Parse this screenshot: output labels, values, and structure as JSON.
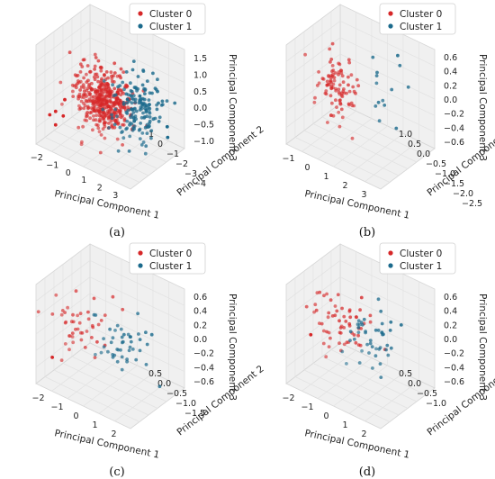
{
  "colors": {
    "cluster0": "#d62728",
    "cluster1": "#1b6a8c"
  },
  "chart_data": [
    {
      "id": "a",
      "caption": "(a)",
      "type": "scatter3d",
      "legend_location": "top",
      "xlabel": "Principal Component 1",
      "ylabel": "Principal Component 2",
      "zlabel": "Principal Component 3",
      "xticks": [
        "−2",
        "−1",
        "0",
        "1",
        "2",
        "3"
      ],
      "yticks": [
        "1",
        "0",
        "−1",
        "−2",
        "−3",
        "−4"
      ],
      "zticks": [
        "1.5",
        "1.0",
        "0.5",
        "0.0",
        "−0.5",
        "−1.0"
      ],
      "xlim": [
        -2.5,
        3.5
      ],
      "ylim": [
        -4.5,
        1.5
      ],
      "zlim": [
        -1.2,
        1.6
      ],
      "series": [
        {
          "name": "Cluster 0",
          "cluster": 0,
          "n": 420,
          "center": [
            0.6,
            -0.5,
            0.3
          ],
          "spread": [
            0.8,
            0.7,
            0.4
          ],
          "outliers": [
            [
              -2.2,
              0.5,
              -0.5
            ],
            [
              -2.0,
              0.2,
              -0.8
            ],
            [
              -1.6,
              0.9,
              -0.2
            ],
            [
              -1.3,
              0.4,
              0.1
            ],
            [
              -1.8,
              -0.3,
              -0.6
            ]
          ]
        },
        {
          "name": "Cluster 1",
          "cluster": 1,
          "n": 160,
          "center": [
            1.9,
            -2.0,
            0.0
          ],
          "spread": [
            0.7,
            0.8,
            0.45
          ],
          "outliers": [
            [
              3.0,
              -3.5,
              -0.8
            ],
            [
              2.8,
              -3.8,
              -0.6
            ]
          ]
        }
      ]
    },
    {
      "id": "b",
      "caption": "(b)",
      "type": "scatter3d",
      "legend_location": "top",
      "xlabel": "Principal Component 1",
      "ylabel": "Principal Component 2",
      "zlabel": "Principal Component 3",
      "xticks": [
        "−1",
        "0",
        "1",
        "2",
        "3"
      ],
      "yticks": [
        "1.0",
        "0.5",
        "0.0",
        "−0.5",
        "−1.0",
        "−1.5",
        "−2.0",
        "−2.5"
      ],
      "zticks": [
        "0.6",
        "0.4",
        "0.2",
        "0.0",
        "−0.2",
        "−0.4",
        "−0.6"
      ],
      "xlim": [
        -1.5,
        3.5
      ],
      "ylim": [
        -2.8,
        1.2
      ],
      "zlim": [
        -0.65,
        0.7
      ],
      "series": [
        {
          "name": "Cluster 0",
          "cluster": 0,
          "n": 95,
          "center": [
            0.4,
            0.2,
            0.2
          ],
          "spread": [
            0.5,
            0.4,
            0.2
          ],
          "outliers": []
        },
        {
          "name": "Cluster 1",
          "cluster": 1,
          "n": 14,
          "center": [
            1.8,
            -1.6,
            0.1
          ],
          "spread": [
            0.7,
            0.6,
            0.2
          ],
          "outliers": []
        }
      ]
    },
    {
      "id": "c",
      "caption": "(c)",
      "type": "scatter3d",
      "legend_location": "top",
      "xlabel": "Principal Component 1",
      "ylabel": "Principal Component 2",
      "zlabel": "Principal Component 3",
      "xticks": [
        "−2",
        "−1",
        "0",
        "1",
        "2"
      ],
      "yticks": [
        "0.5",
        "0.0",
        "−0.5",
        "−1.0",
        "−1.5"
      ],
      "zticks": [
        "0.6",
        "0.4",
        "0.2",
        "0.0",
        "−0.2",
        "−0.4",
        "−0.6"
      ],
      "xlim": [
        -2.3,
        2.5
      ],
      "ylim": [
        -1.7,
        0.9
      ],
      "zlim": [
        -0.7,
        0.7
      ],
      "series": [
        {
          "name": "Cluster 0",
          "cluster": 0,
          "n": 45,
          "center": [
            -0.6,
            0.2,
            0.2
          ],
          "spread": [
            0.6,
            0.35,
            0.2
          ],
          "outliers": [
            [
              -2.0,
              0.4,
              -0.4
            ]
          ]
        },
        {
          "name": "Cluster 1",
          "cluster": 1,
          "n": 45,
          "center": [
            0.7,
            -0.4,
            0.05
          ],
          "spread": [
            0.6,
            0.35,
            0.2
          ],
          "outliers": []
        }
      ]
    },
    {
      "id": "d",
      "caption": "(d)",
      "type": "scatter3d",
      "legend_location": "top",
      "xlabel": "Principal Component 1",
      "ylabel": "Principal Component 2",
      "zlabel": "Principal Component 3",
      "xticks": [
        "−2",
        "−1",
        "0",
        "1",
        "2"
      ],
      "yticks": [
        "0.5",
        "0.0",
        "−0.5",
        "−1.0"
      ],
      "zticks": [
        "0.6",
        "0.4",
        "0.2",
        "0.0",
        "−0.2",
        "−0.4",
        "−0.6"
      ],
      "xlim": [
        -2.3,
        2.5
      ],
      "ylim": [
        -1.3,
        0.9
      ],
      "zlim": [
        -0.7,
        0.7
      ],
      "series": [
        {
          "name": "Cluster 0",
          "cluster": 0,
          "n": 60,
          "center": [
            -0.5,
            0.1,
            0.15
          ],
          "spread": [
            0.7,
            0.35,
            0.2
          ],
          "outliers": [
            [
              -1.8,
              0.3,
              -0.1
            ]
          ]
        },
        {
          "name": "Cluster 1",
          "cluster": 1,
          "n": 45,
          "center": [
            0.8,
            -0.3,
            0.0
          ],
          "spread": [
            0.6,
            0.35,
            0.2
          ],
          "outliers": []
        }
      ]
    }
  ]
}
